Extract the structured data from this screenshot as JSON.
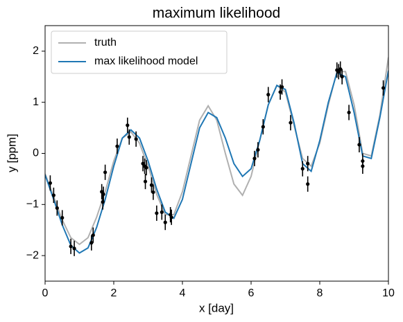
{
  "chart_data": {
    "type": "line",
    "title": "maximum likelihood",
    "x_label": "x [day]",
    "y_label": "y [ppm]",
    "xlim": [
      0,
      10
    ],
    "ylim": [
      -2.5,
      2.5
    ],
    "xticks": [
      0,
      2,
      4,
      6,
      8,
      10
    ],
    "yticks": [
      {
        "value": -2,
        "label": "−2"
      },
      {
        "value": -1,
        "label": "−1"
      },
      0,
      1,
      2
    ],
    "legend": "upper left",
    "x": [
      0,
      0.25,
      0.5,
      0.75,
      1,
      1.25,
      1.5,
      1.75,
      2,
      2.25,
      2.5,
      2.75,
      3,
      3.25,
      3.5,
      3.75,
      4,
      4.25,
      4.5,
      4.75,
      5,
      5.25,
      5.5,
      5.75,
      6,
      6.25,
      6.5,
      6.75,
      7,
      7.25,
      7.5,
      7.75,
      8,
      8.25,
      8.5,
      8.75,
      9,
      9.25,
      9.5,
      9.75,
      10
    ],
    "series": [
      {
        "name": "truth",
        "color": "#b0b0b0",
        "values": [
          -0.4,
          -0.85,
          -1.3,
          -1.65,
          -1.78,
          -1.65,
          -1.25,
          -0.75,
          -0.15,
          0.3,
          0.42,
          0.2,
          -0.25,
          -0.8,
          -1.2,
          -1.2,
          -0.75,
          -0.05,
          0.65,
          0.93,
          0.65,
          0.0,
          -0.6,
          -0.82,
          -0.45,
          0.25,
          0.95,
          1.33,
          1.2,
          0.55,
          -0.1,
          -0.25,
          0.2,
          0.95,
          1.6,
          1.6,
          0.95,
          0.0,
          -0.05,
          0.75,
          1.88
        ]
      },
      {
        "name": "max likelihood model",
        "color": "#1f77b4",
        "values": [
          -0.42,
          -0.9,
          -1.4,
          -1.8,
          -1.95,
          -1.85,
          -1.45,
          -0.9,
          -0.25,
          0.3,
          0.46,
          0.3,
          -0.15,
          -0.7,
          -1.15,
          -1.27,
          -0.9,
          -0.2,
          0.5,
          0.8,
          0.7,
          0.3,
          -0.2,
          -0.45,
          -0.3,
          0.25,
          0.95,
          1.33,
          1.25,
          0.6,
          -0.2,
          -0.35,
          0.25,
          1.0,
          1.58,
          1.5,
          0.8,
          -0.05,
          -0.1,
          0.7,
          1.62
        ]
      }
    ],
    "points": {
      "color": "#000000",
      "x": [
        0.15,
        0.25,
        0.35,
        0.5,
        0.75,
        0.85,
        1.35,
        1.4,
        1.65,
        1.68,
        1.7,
        1.75,
        2.1,
        2.4,
        2.45,
        2.65,
        2.85,
        2.9,
        2.92,
        2.95,
        3.1,
        3.15,
        3.25,
        3.4,
        3.5,
        3.65,
        3.68,
        6.1,
        6.2,
        6.35,
        6.5,
        6.85,
        6.9,
        7.15,
        7.5,
        7.65,
        7.65,
        8.5,
        8.55,
        8.6,
        8.65,
        8.85,
        9.15,
        9.25,
        9.25,
        9.85
      ],
      "y": [
        -0.58,
        -0.82,
        -1.07,
        -1.26,
        -1.82,
        -1.86,
        -1.75,
        -1.6,
        -0.75,
        -0.95,
        -0.8,
        -0.37,
        0.14,
        0.55,
        0.32,
        0.28,
        -0.2,
        -0.25,
        -0.55,
        -0.28,
        -0.62,
        -0.76,
        -1.17,
        -1.15,
        -1.35,
        -1.2,
        -1.25,
        -0.1,
        0.07,
        0.52,
        1.15,
        1.2,
        1.3,
        0.6,
        -0.3,
        -0.2,
        -0.6,
        1.63,
        1.6,
        1.65,
        1.5,
        0.8,
        0.17,
        -0.15,
        -0.25,
        1.28
      ],
      "yerr": [
        0.15,
        0.15,
        0.15,
        0.15,
        0.15,
        0.15,
        0.15,
        0.15,
        0.15,
        0.15,
        0.15,
        0.15,
        0.15,
        0.15,
        0.15,
        0.15,
        0.15,
        0.15,
        0.15,
        0.15,
        0.15,
        0.15,
        0.15,
        0.15,
        0.15,
        0.15,
        0.15,
        0.15,
        0.15,
        0.15,
        0.15,
        0.15,
        0.15,
        0.15,
        0.15,
        0.15,
        0.15,
        0.15,
        0.15,
        0.15,
        0.15,
        0.15,
        0.15,
        0.15,
        0.15,
        0.15
      ]
    }
  }
}
